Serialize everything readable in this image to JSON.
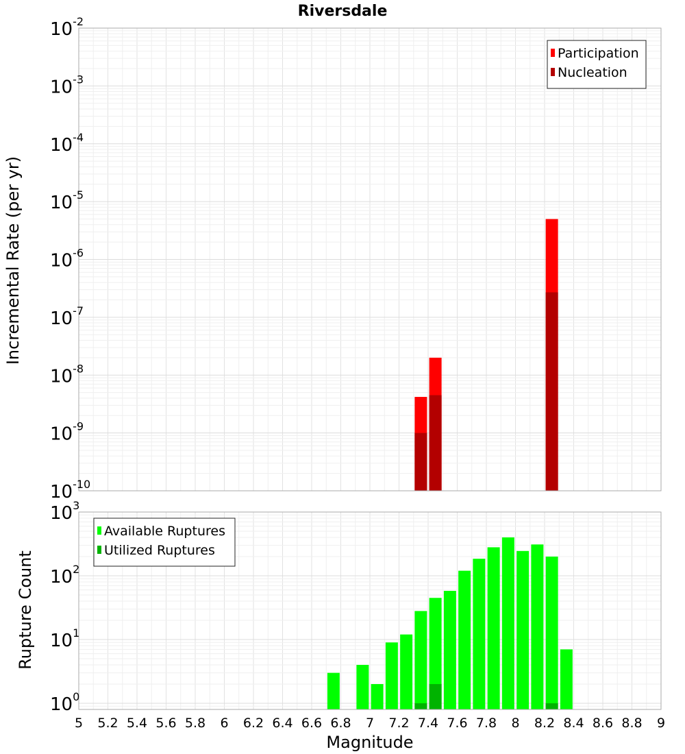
{
  "chart_data": [
    {
      "type": "bar",
      "title": "Riversdale",
      "xlabel": "",
      "ylabel": "Incremental Rate (per yr)",
      "yscale": "log",
      "ylim": [
        1e-10,
        0.01
      ],
      "xlim": [
        5,
        9
      ],
      "grid": true,
      "legend_position": "top-right",
      "y_ticks": [
        {
          "base": "10",
          "exp": "-2",
          "value": 0.01
        },
        {
          "base": "10",
          "exp": "-3",
          "value": 0.001
        },
        {
          "base": "10",
          "exp": "-4",
          "value": 0.0001
        },
        {
          "base": "10",
          "exp": "-5",
          "value": 1e-05
        },
        {
          "base": "10",
          "exp": "-6",
          "value": 1e-06
        },
        {
          "base": "10",
          "exp": "-7",
          "value": 1e-07
        },
        {
          "base": "10",
          "exp": "-8",
          "value": 1e-08
        },
        {
          "base": "10",
          "exp": "-9",
          "value": 1e-09
        },
        {
          "base": "10",
          "exp": "-10",
          "value": 1e-10
        }
      ],
      "series": [
        {
          "name": "Participation",
          "color": "#ff0000",
          "x": [
            7.35,
            7.45,
            8.25
          ],
          "values": [
            4.2e-09,
            2e-08,
            5e-06
          ]
        },
        {
          "name": "Nucleation",
          "color": "#b30000",
          "x": [
            7.35,
            7.45,
            8.25
          ],
          "values": [
            1e-09,
            4.5e-09,
            2.7e-07
          ]
        }
      ]
    },
    {
      "type": "bar",
      "title": "",
      "xlabel": "Magnitude",
      "ylabel": "Rupture Count",
      "yscale": "log",
      "ylim": [
        0.8,
        1000
      ],
      "xlim": [
        5,
        9
      ],
      "grid": true,
      "legend_position": "top-left",
      "y_ticks": [
        {
          "base": "10",
          "exp": "3",
          "value": 1000
        },
        {
          "base": "10",
          "exp": "2",
          "value": 100
        },
        {
          "base": "10",
          "exp": "1",
          "value": 10
        },
        {
          "base": "10",
          "exp": "0",
          "value": 1
        }
      ],
      "x_ticks": [
        "5",
        "5.2",
        "5.4",
        "5.6",
        "5.8",
        "6",
        "6.2",
        "6.4",
        "6.6",
        "6.8",
        "7",
        "7.2",
        "7.4",
        "7.6",
        "7.8",
        "8",
        "8.2",
        "8.4",
        "8.6",
        "8.8",
        "9"
      ],
      "series": [
        {
          "name": "Available Ruptures",
          "color": "#00ff00",
          "x": [
            6.75,
            6.95,
            7.05,
            7.15,
            7.25,
            7.35,
            7.45,
            7.55,
            7.65,
            7.75,
            7.85,
            7.95,
            8.05,
            8.15,
            8.25,
            8.35
          ],
          "values": [
            3,
            4,
            2,
            9,
            12,
            28,
            45,
            58,
            120,
            185,
            280,
            400,
            245,
            310,
            200,
            7
          ]
        },
        {
          "name": "Utilized Ruptures",
          "color": "#00b300",
          "x": [
            7.35,
            7.45,
            8.25
          ],
          "values": [
            1,
            2,
            1
          ]
        }
      ]
    }
  ]
}
